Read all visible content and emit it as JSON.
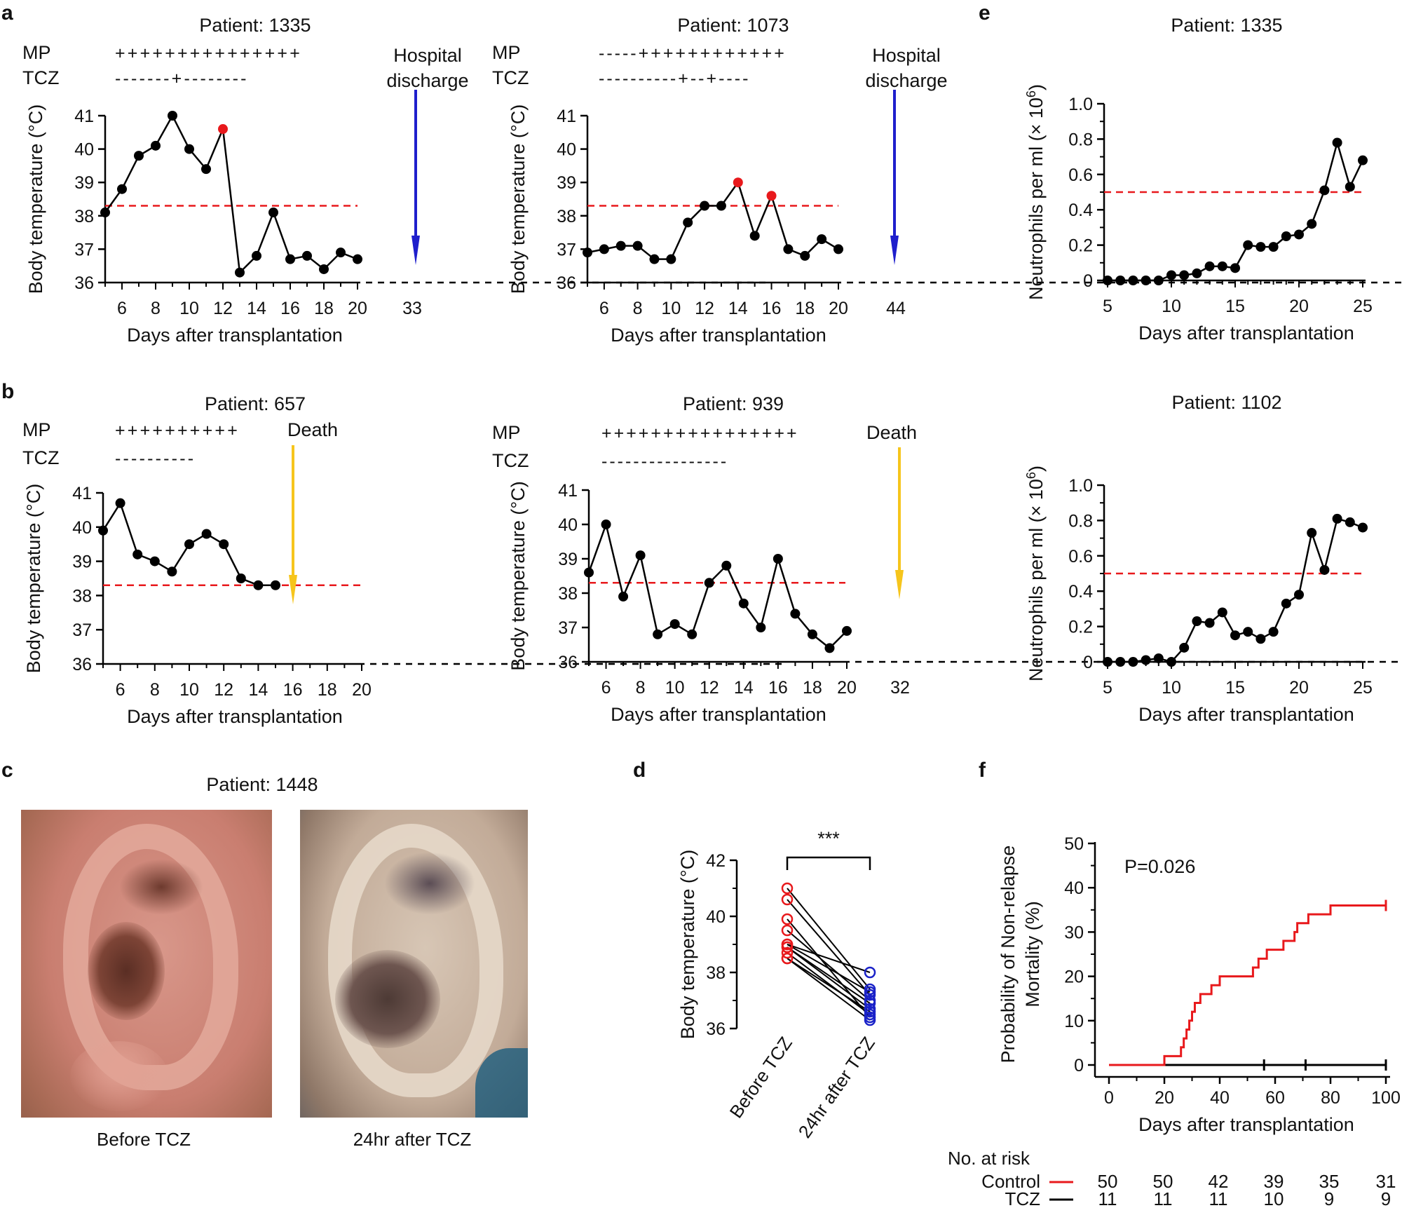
{
  "colors": {
    "axis": "#000000",
    "series": "#000000",
    "threshold": "#e8191c",
    "highlight": "#e8191c",
    "discharge_arrow": "#1f1fcc",
    "death_arrow": "#f6c51c",
    "after": "#1a22c8",
    "control": "#e8191c",
    "tcz": "#000000"
  },
  "panels": {
    "a": "a",
    "b": "b",
    "c": "c",
    "d": "d",
    "e": "e",
    "f": "f"
  },
  "common": {
    "mp_label": "MP",
    "tcz_label": "TCZ",
    "discharge_line1": "Hospital",
    "discharge_line2": "discharge",
    "death_label": "Death",
    "xlabel": "Days after transplantation",
    "temp_ylabel_pre": "Body temperature (",
    "temp_ylabel_unit": "°C",
    "temp_ylabel_post": ")",
    "neut_ylabel_pre": "Neutrophils per ml (× 10",
    "neut_ylabel_exp": "6",
    "neut_ylabel_post": ")"
  },
  "photos": {
    "title": "Patient: 1448",
    "before_caption": "Before TCZ",
    "after_caption": "24hr after TCZ"
  },
  "chart_data": [
    {
      "id": "a1",
      "type": "line",
      "title": "Patient: 1335",
      "mp": "+++++++++++++++",
      "tcz": "-------+--------",
      "x": [
        5,
        6,
        7,
        8,
        9,
        10,
        11,
        12,
        13,
        14,
        15,
        16,
        17,
        18,
        19,
        20
      ],
      "y": [
        38.1,
        38.8,
        39.8,
        40.1,
        41.0,
        40.0,
        39.4,
        40.6,
        36.3,
        36.8,
        38.1,
        36.7,
        36.8,
        36.4,
        36.9,
        36.7
      ],
      "highlight_x": [
        12
      ],
      "threshold": 38.3,
      "xlim": [
        5,
        20
      ],
      "ylim": [
        36,
        41
      ],
      "xticks": [
        6,
        8,
        10,
        12,
        14,
        16,
        18,
        20
      ],
      "yticks": [
        36,
        37,
        38,
        39,
        40,
        41
      ],
      "extra_tick": "33",
      "event": "discharge",
      "xlabel": "Days after transplantation",
      "ylabel": "Body temperature (°C)"
    },
    {
      "id": "a2",
      "type": "line",
      "title": "Patient: 1073",
      "mp": "-----++++++++++++",
      "tcz": "----------+--+----",
      "x": [
        5,
        6,
        7,
        8,
        9,
        10,
        11,
        12,
        13,
        14,
        15,
        16,
        17,
        18,
        19,
        20
      ],
      "y": [
        36.9,
        37.0,
        37.1,
        37.1,
        36.7,
        36.7,
        37.8,
        38.3,
        38.3,
        39.0,
        37.4,
        38.6,
        37.0,
        36.8,
        37.3,
        37.0
      ],
      "highlight_x": [
        14,
        16
      ],
      "threshold": 38.3,
      "xlim": [
        5,
        20
      ],
      "ylim": [
        36,
        41
      ],
      "xticks": [
        6,
        8,
        10,
        12,
        14,
        16,
        18,
        20
      ],
      "yticks": [
        36,
        37,
        38,
        39,
        40,
        41
      ],
      "extra_tick": "44",
      "event": "discharge",
      "xlabel": "Days after transplantation",
      "ylabel": "Body temperature (°C)"
    },
    {
      "id": "b1",
      "type": "line",
      "title": "Patient: 657",
      "mp": "++++++++++",
      "tcz": "----------",
      "x": [
        5,
        6,
        7,
        8,
        9,
        10,
        11,
        12,
        13,
        14,
        15
      ],
      "y": [
        39.9,
        40.7,
        39.2,
        39.0,
        38.7,
        39.5,
        39.8,
        39.5,
        38.5,
        38.3,
        38.3
      ],
      "highlight_x": [],
      "threshold": 38.3,
      "xlim": [
        5,
        20
      ],
      "ylim": [
        36,
        41
      ],
      "xticks": [
        6,
        8,
        10,
        12,
        14,
        16,
        18,
        20
      ],
      "yticks": [
        36,
        37,
        38,
        39,
        40,
        41
      ],
      "extra_tick": "",
      "event": "death",
      "xlabel": "Days after transplantation",
      "ylabel": "Body temperature (°C)"
    },
    {
      "id": "b2",
      "type": "line",
      "title": "Patient: 939",
      "mp": "++++++++++++++++",
      "tcz": "----------------",
      "x": [
        5,
        6,
        7,
        8,
        9,
        10,
        11,
        12,
        13,
        14,
        15,
        16,
        17,
        18,
        19,
        20
      ],
      "y": [
        38.6,
        40.0,
        37.9,
        39.1,
        36.8,
        37.1,
        36.8,
        38.3,
        38.8,
        37.7,
        37.0,
        39.0,
        37.4,
        36.8,
        36.4,
        36.9
      ],
      "highlight_x": [],
      "threshold": 38.3,
      "xlim": [
        5,
        20
      ],
      "ylim": [
        36,
        41
      ],
      "xticks": [
        6,
        8,
        10,
        12,
        14,
        16,
        18,
        20
      ],
      "yticks": [
        36,
        37,
        38,
        39,
        40,
        41
      ],
      "extra_tick": "32",
      "event": "death",
      "xlabel": "Days after transplantation",
      "ylabel": "Body temperature (°C)"
    },
    {
      "id": "e1",
      "type": "line",
      "title": "Patient: 1335",
      "x": [
        5,
        6,
        7,
        8,
        9,
        10,
        11,
        12,
        13,
        14,
        15,
        16,
        17,
        18,
        19,
        20,
        21,
        22,
        23,
        24,
        25
      ],
      "y": [
        0,
        0,
        0,
        0,
        0,
        0.03,
        0.03,
        0.04,
        0.08,
        0.08,
        0.07,
        0.2,
        0.19,
        0.19,
        0.25,
        0.26,
        0.32,
        0.51,
        0.78,
        0.53,
        0.68
      ],
      "threshold": 0.5,
      "xlim": [
        5,
        25
      ],
      "ylim": [
        0,
        1
      ],
      "xticks": [
        5,
        10,
        15,
        20,
        25
      ],
      "yticks": [
        0,
        0.2,
        0.4,
        0.6,
        0.8,
        1.0
      ],
      "ytick_labels": [
        "0",
        "0.2",
        "0.4",
        "0.6",
        "0.8",
        "1.0"
      ],
      "xlabel": "Days after transplantation",
      "ylabel": "Neutrophils per ml (× 10⁶)"
    },
    {
      "id": "e2",
      "type": "line",
      "title": "Patient: 1102",
      "x": [
        5,
        6,
        7,
        8,
        9,
        10,
        11,
        12,
        13,
        14,
        15,
        16,
        17,
        18,
        19,
        20,
        21,
        22,
        23,
        24,
        25
      ],
      "y": [
        0,
        0,
        0,
        0.01,
        0.02,
        0,
        0.08,
        0.23,
        0.22,
        0.28,
        0.15,
        0.17,
        0.13,
        0.17,
        0.33,
        0.38,
        0.73,
        0.52,
        0.81,
        0.79,
        0.76
      ],
      "threshold": 0.5,
      "xlim": [
        5,
        25
      ],
      "ylim": [
        0,
        1
      ],
      "xticks": [
        5,
        10,
        15,
        20,
        25
      ],
      "yticks": [
        0,
        0.2,
        0.4,
        0.6,
        0.8,
        1.0
      ],
      "ytick_labels": [
        "0",
        "0.2",
        "0.4",
        "0.6",
        "0.8",
        "1.0"
      ],
      "xlabel": "Days after transplantation",
      "ylabel": "Neutrophils per ml (× 10⁶)"
    },
    {
      "id": "d",
      "type": "scatter",
      "categories": [
        "Before TCZ",
        "24hr after TCZ"
      ],
      "pairs": [
        [
          41.0,
          37.4
        ],
        [
          40.6,
          37.2
        ],
        [
          39.9,
          36.4
        ],
        [
          39.5,
          37.0
        ],
        [
          39.0,
          38.0
        ],
        [
          39.0,
          37.3
        ],
        [
          38.9,
          36.7
        ],
        [
          38.9,
          36.9
        ],
        [
          38.7,
          36.5
        ],
        [
          38.5,
          36.6
        ],
        [
          38.5,
          36.3
        ]
      ],
      "significance": "***",
      "ylim": [
        36,
        42
      ],
      "yticks": [
        36,
        38,
        40,
        42
      ],
      "ylabel": "Body temperature (°C)"
    },
    {
      "id": "f",
      "type": "line",
      "annotation": "P=0.026",
      "series": [
        {
          "name": "Control",
          "x": [
            0,
            20,
            20,
            26,
            26,
            27,
            27,
            28,
            28,
            29,
            29,
            30,
            30,
            31,
            31,
            33,
            33,
            37,
            37,
            40,
            40,
            52,
            52,
            54,
            54,
            57,
            57,
            63,
            63,
            67,
            67,
            68,
            68,
            72,
            72,
            80,
            80,
            81,
            81,
            89,
            89,
            90,
            90,
            100
          ],
          "y": [
            0,
            0,
            2,
            2,
            4,
            4,
            6,
            6,
            8,
            8,
            10,
            10,
            12,
            12,
            14,
            14,
            16,
            16,
            18,
            18,
            20,
            20,
            22,
            22,
            24,
            24,
            26,
            26,
            28,
            28,
            30,
            30,
            32,
            32,
            34,
            34,
            36,
            36,
            36,
            36,
            36,
            36,
            36,
            36
          ]
        },
        {
          "name": "TCZ",
          "x": [
            0,
            100
          ],
          "y": [
            0,
            0
          ],
          "censor_x": [
            56,
            71,
            100
          ]
        }
      ],
      "control_censor_x": [
        100
      ],
      "xlim": [
        0,
        100
      ],
      "ylim": [
        0,
        50
      ],
      "xticks": [
        0,
        20,
        40,
        60,
        80,
        100
      ],
      "yticks": [
        0,
        10,
        20,
        30,
        40,
        50
      ],
      "xlabel": "Days after transplantation",
      "ylabel_line1": "Probability of Non-relapse",
      "ylabel_line2": "Mortality (%)",
      "risk_title": "No. at risk",
      "risk": [
        {
          "name": "Control",
          "values": [
            50,
            50,
            42,
            39,
            35,
            31
          ]
        },
        {
          "name": "TCZ",
          "values": [
            11,
            11,
            11,
            10,
            9,
            9
          ]
        }
      ]
    }
  ]
}
